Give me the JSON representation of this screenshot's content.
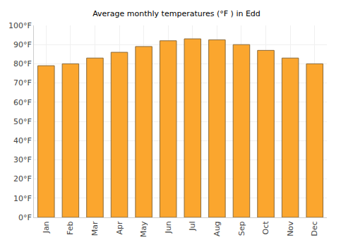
{
  "chart_data": {
    "type": "bar",
    "title": "Average monthly temperatures (°F ) in Edd",
    "categories": [
      "Jan",
      "Feb",
      "Mar",
      "Apr",
      "May",
      "Jun",
      "Jul",
      "Aug",
      "Sep",
      "Oct",
      "Nov",
      "Dec"
    ],
    "values": [
      79,
      80,
      83,
      86,
      89,
      92,
      93,
      92.5,
      90,
      87,
      83,
      80
    ],
    "color": "#fba62e",
    "ylim": [
      0,
      100
    ],
    "yticks": [
      {
        "value": 0,
        "label": "0°F"
      },
      {
        "value": 10,
        "label": "10°F"
      },
      {
        "value": 20,
        "label": "20°F"
      },
      {
        "value": 30,
        "label": "30°F"
      },
      {
        "value": 40,
        "label": "40°F"
      },
      {
        "value": 50,
        "label": "50°F"
      },
      {
        "value": 60,
        "label": "60°F"
      },
      {
        "value": 70,
        "label": "70°F"
      },
      {
        "value": 80,
        "label": "80°F"
      },
      {
        "value": 90,
        "label": "90°F"
      },
      {
        "value": 100,
        "label": "100°F"
      }
    ],
    "grid": true
  }
}
